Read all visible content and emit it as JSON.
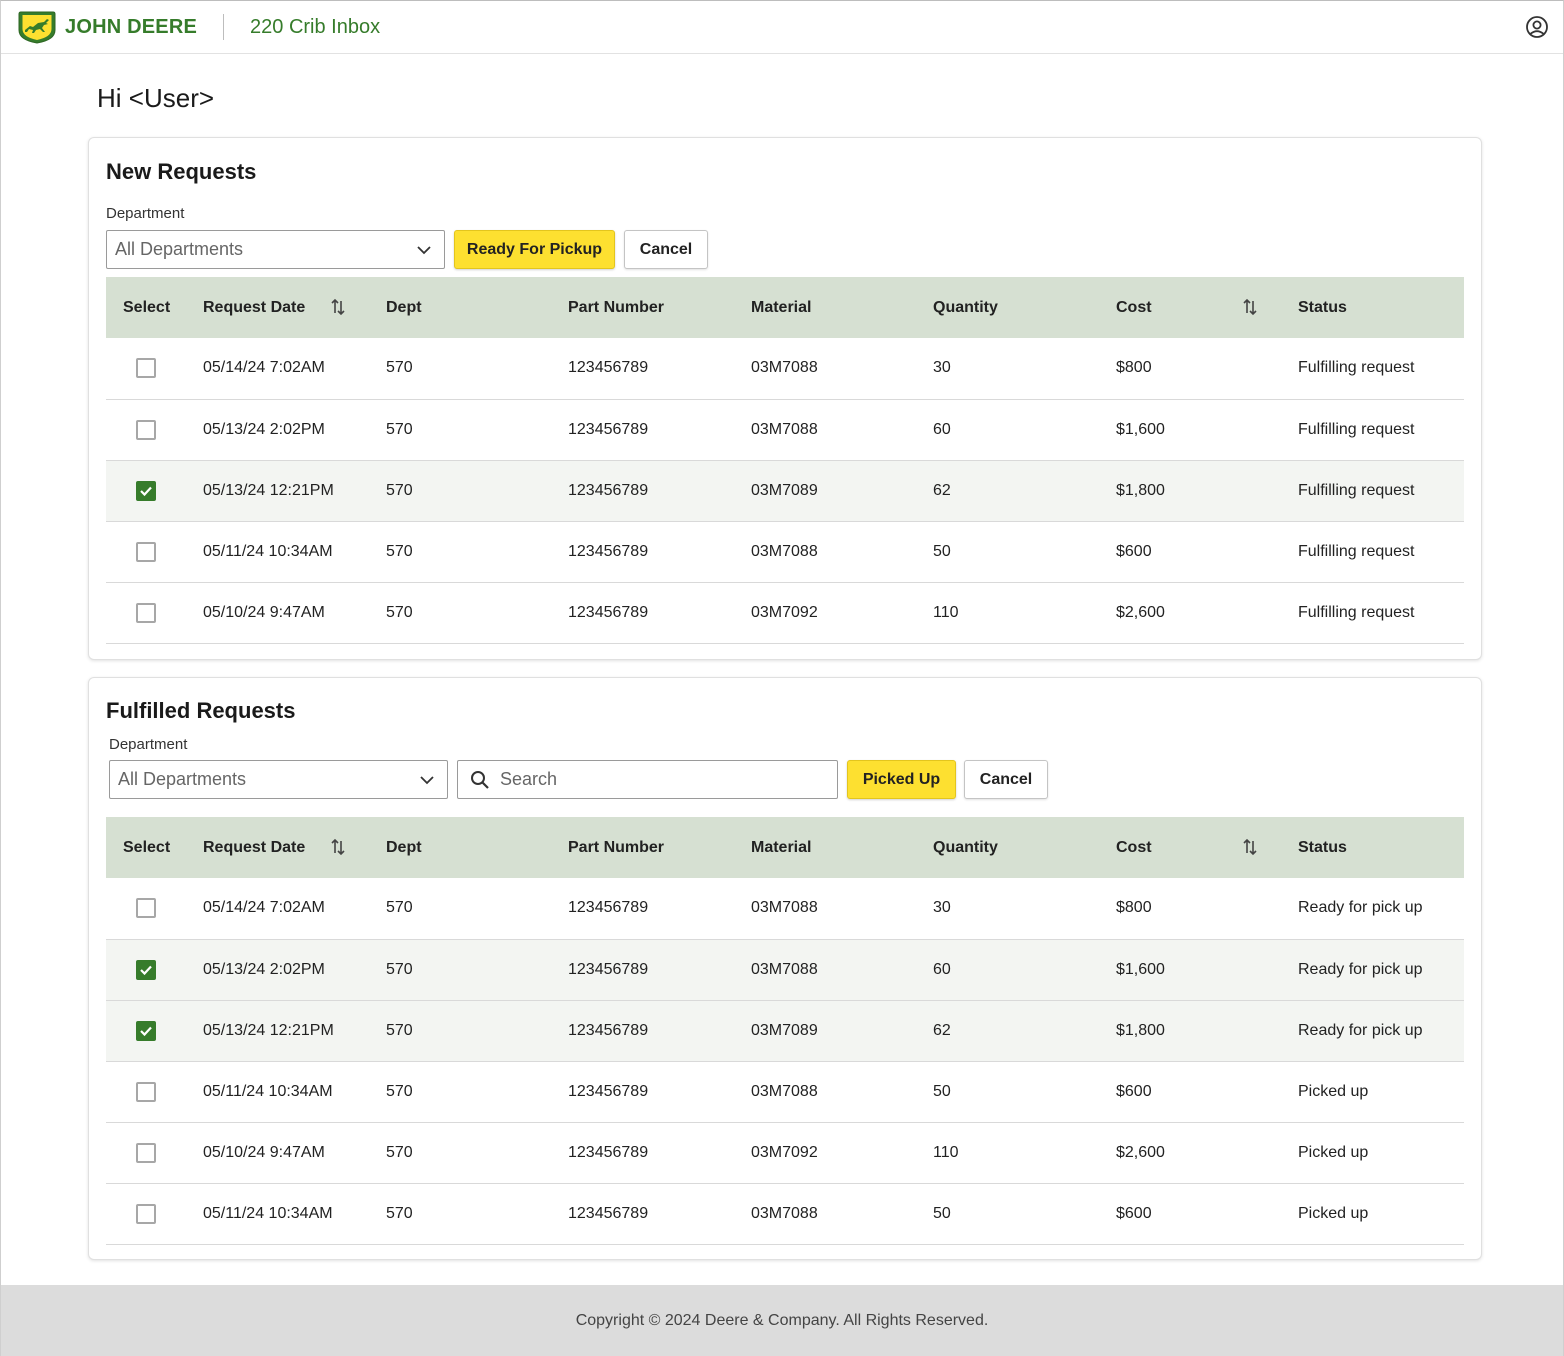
{
  "header": {
    "brand": "JOHN DEERE",
    "app_title": "220 Crib Inbox",
    "logo_icon": "deere-leaping-deer-logo",
    "account_icon": "user-account-icon"
  },
  "greeting": "Hi <User>",
  "colors": {
    "brand_green": "#367c2b",
    "brand_yellow": "#fde030",
    "table_header_bg": "#d6e0d2",
    "footer_bg": "#dcdcdc"
  },
  "new_requests": {
    "title": "New Requests",
    "department_label": "Department",
    "department_value": "All Departments",
    "ready_button": "Ready For Pickup",
    "cancel_button": "Cancel",
    "columns": [
      "Select",
      "Request Date",
      "Dept",
      "Part Number",
      "Material",
      "Quantity",
      "Cost",
      "Status"
    ],
    "rows": [
      {
        "checked": false,
        "date": "05/14/24 7:02AM",
        "dept": "570",
        "part": "123456789",
        "material": "03M7088",
        "qty": "30",
        "cost": "$800",
        "status": "Fulfilling request"
      },
      {
        "checked": false,
        "date": "05/13/24 2:02PM",
        "dept": "570",
        "part": "123456789",
        "material": "03M7088",
        "qty": "60",
        "cost": "$1,600",
        "status": "Fulfilling request"
      },
      {
        "checked": true,
        "date": "05/13/24 12:21PM",
        "dept": "570",
        "part": "123456789",
        "material": "03M7089",
        "qty": "62",
        "cost": "$1,800",
        "status": "Fulfilling request"
      },
      {
        "checked": false,
        "date": "05/11/24 10:34AM",
        "dept": "570",
        "part": "123456789",
        "material": "03M7088",
        "qty": "50",
        "cost": "$600",
        "status": "Fulfilling request"
      },
      {
        "checked": false,
        "date": "05/10/24 9:47AM",
        "dept": "570",
        "part": "123456789",
        "material": "03M7092",
        "qty": "110",
        "cost": "$2,600",
        "status": "Fulfilling request"
      }
    ]
  },
  "fulfilled_requests": {
    "title": "Fulfilled Requests",
    "department_label": "Department",
    "department_value": "All Departments",
    "search_placeholder": "Search",
    "picked_button": "Picked Up",
    "cancel_button": "Cancel",
    "columns": [
      "Select",
      "Request Date",
      "Dept",
      "Part Number",
      "Material",
      "Quantity",
      "Cost",
      "Status"
    ],
    "rows": [
      {
        "checked": false,
        "date": "05/14/24 7:02AM",
        "dept": "570",
        "part": "123456789",
        "material": "03M7088",
        "qty": "30",
        "cost": "$800",
        "status": "Ready for pick up"
      },
      {
        "checked": true,
        "date": "05/13/24 2:02PM",
        "dept": "570",
        "part": "123456789",
        "material": "03M7088",
        "qty": "60",
        "cost": "$1,600",
        "status": "Ready for pick up"
      },
      {
        "checked": true,
        "date": "05/13/24 12:21PM",
        "dept": "570",
        "part": "123456789",
        "material": "03M7089",
        "qty": "62",
        "cost": "$1,800",
        "status": "Ready for pick up"
      },
      {
        "checked": false,
        "date": "05/11/24 10:34AM",
        "dept": "570",
        "part": "123456789",
        "material": "03M7088",
        "qty": "50",
        "cost": "$600",
        "status": "Picked up"
      },
      {
        "checked": false,
        "date": "05/10/24 9:47AM",
        "dept": "570",
        "part": "123456789",
        "material": "03M7092",
        "qty": "110",
        "cost": "$2,600",
        "status": "Picked up"
      },
      {
        "checked": false,
        "date": "05/11/24 10:34AM",
        "dept": "570",
        "part": "123456789",
        "material": "03M7088",
        "qty": "50",
        "cost": "$600",
        "status": "Picked up"
      }
    ]
  },
  "footer": {
    "copyright": "Copyright © 2024 Deere & Company. All Rights Reserved."
  }
}
